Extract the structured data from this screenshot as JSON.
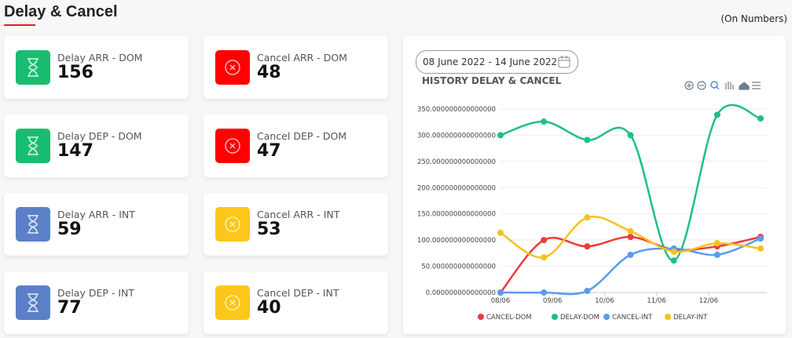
{
  "header": {
    "title": "Delay & Cancel",
    "note": "(On Numbers)"
  },
  "cards": [
    {
      "label": "Delay ARR - DOM",
      "value": 156
    },
    {
      "label": "Cancel ARR - DOM",
      "value": 48
    },
    {
      "label": "Delay DEP - DOM",
      "value": 147
    },
    {
      "label": "Cancel DEP - DOM",
      "value": 47
    },
    {
      "label": "Delay ARR - INT",
      "value": 59
    },
    {
      "label": "Cancel ARR - INT",
      "value": 53
    },
    {
      "label": "Delay DEP - INT",
      "value": 77
    },
    {
      "label": "Cancel DEP - INT",
      "value": 40
    }
  ],
  "date_range": "08 June 2022 - 14 June 2022",
  "chart_data": {
    "type": "line",
    "title": "HISTORY DELAY & CANCEL",
    "x": [
      0,
      0.833,
      1.667,
      2.5,
      3.333,
      4.167,
      5
    ],
    "xlim": [
      0,
      5
    ],
    "xticks": [
      {
        "value": 0,
        "label": "08/06"
      },
      {
        "value": 1,
        "label": "09/06"
      },
      {
        "value": 2,
        "label": "10/06"
      },
      {
        "value": 3,
        "label": "11/06"
      },
      {
        "value": 4,
        "label": "12/06"
      }
    ],
    "ylim": [
      0,
      350
    ],
    "yticks": [
      {
        "value": 0,
        "label": "0.000000000000000"
      },
      {
        "value": 50,
        "label": "50.000000000000000"
      },
      {
        "value": 100,
        "label": "100.000000000000000"
      },
      {
        "value": 150,
        "label": "150.000000000000000"
      },
      {
        "value": 200,
        "label": "200.000000000000000"
      },
      {
        "value": 250,
        "label": "250.000000000000000"
      },
      {
        "value": 300,
        "label": "300.000000000000000"
      },
      {
        "value": 350,
        "label": "350.000000000000000"
      }
    ],
    "grid": true,
    "series": [
      {
        "name": "CANCEL-DOM",
        "color": "#ee3a3a",
        "values": [
          0,
          100,
          88,
          106,
          82,
          88,
          106
        ]
      },
      {
        "name": "DELAY-DOM",
        "color": "#1ec081",
        "values": [
          300,
          326,
          291,
          300,
          61,
          339,
          332
        ]
      },
      {
        "name": "CANCEL-INT",
        "color": "#5a9bf0",
        "values": [
          0,
          0,
          3,
          72,
          84,
          72,
          103
        ]
      },
      {
        "name": "DELAY-INT",
        "color": "#f4c21e",
        "values": [
          114,
          67,
          143,
          117,
          78,
          94,
          84
        ]
      }
    ]
  }
}
